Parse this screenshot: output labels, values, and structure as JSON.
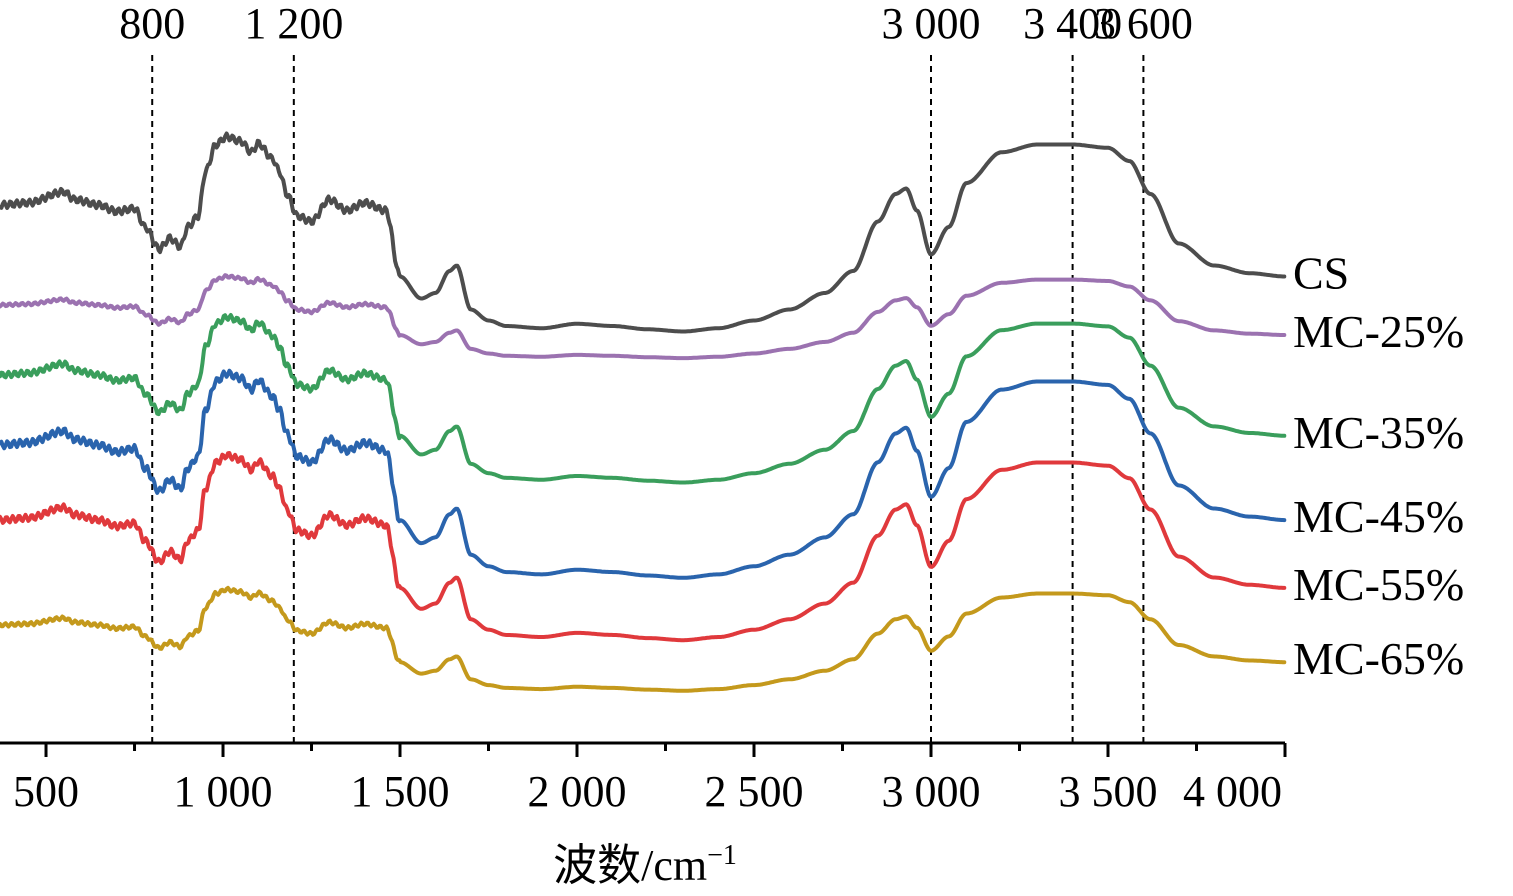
{
  "chart_data": {
    "type": "line",
    "title": "",
    "xlabel": "波数/cm",
    "xlabel_superscript": "−1",
    "ylabel": "",
    "xlim": [
      370,
      4000
    ],
    "x_ticks": [
      {
        "value": 500,
        "label": "500"
      },
      {
        "value": 1000,
        "label": "1 000"
      },
      {
        "value": 1500,
        "label": "1 500"
      },
      {
        "value": 2000,
        "label": "2 000"
      },
      {
        "value": 2500,
        "label": "2 500"
      },
      {
        "value": 3000,
        "label": "3 000"
      },
      {
        "value": 3500,
        "label": "3 500"
      },
      {
        "value": 4000,
        "label": "4 000"
      }
    ],
    "reference_lines": [
      {
        "x": 800,
        "label": "800"
      },
      {
        "x": 1200,
        "label": "1 200"
      },
      {
        "x": 3000,
        "label": "3 000"
      },
      {
        "x": 3400,
        "label": "3 400"
      },
      {
        "x": 3600,
        "label": "3 600"
      }
    ],
    "y_shown": false,
    "grid": false,
    "legend": "labels at right end of each curve",
    "series": [
      {
        "name": "CS",
        "color": "#4d4d4d",
        "offset": 0.0,
        "amp": 1.0
      },
      {
        "name": "MC-25%",
        "color": "#9b72b0",
        "offset": 1.0,
        "amp": 0.42
      },
      {
        "name": "MC-35%",
        "color": "#3a9e5c",
        "offset": 1.7,
        "amp": 0.85
      },
      {
        "name": "MC-45%",
        "color": "#2a64ad",
        "offset": 2.4,
        "amp": 1.05
      },
      {
        "name": "MC-55%",
        "color": "#e0393c",
        "offset": 3.15,
        "amp": 0.95
      },
      {
        "name": "MC-65%",
        "color": "#c4991c",
        "offset": 4.2,
        "amp": 0.52
      }
    ],
    "profile_x": [
      370,
      450,
      550,
      580,
      650,
      700,
      750,
      780,
      820,
      850,
      880,
      900,
      930,
      950,
      980,
      1010,
      1050,
      1080,
      1100,
      1140,
      1160,
      1180,
      1210,
      1250,
      1300,
      1350,
      1400,
      1460,
      1500,
      1560,
      1600,
      1640,
      1660,
      1700,
      1750,
      1800,
      1900,
      2000,
      2100,
      2200,
      2300,
      2400,
      2500,
      2600,
      2700,
      2780,
      2850,
      2900,
      2930,
      2960,
      3000,
      3050,
      3100,
      3200,
      3300,
      3400,
      3500,
      3560,
      3620,
      3700,
      3800,
      3900,
      4000
    ],
    "profile_y": [
      0.0,
      0.02,
      0.12,
      0.05,
      0.0,
      -0.06,
      -0.03,
      -0.2,
      -0.4,
      -0.3,
      -0.38,
      -0.2,
      -0.1,
      0.3,
      0.55,
      0.62,
      0.58,
      0.48,
      0.56,
      0.42,
      0.3,
      0.1,
      -0.1,
      -0.15,
      0.05,
      -0.05,
      0.02,
      -0.05,
      -0.65,
      -0.85,
      -0.8,
      -0.6,
      -0.55,
      -0.95,
      -1.05,
      -1.1,
      -1.12,
      -1.08,
      -1.1,
      -1.13,
      -1.15,
      -1.12,
      -1.05,
      -0.95,
      -0.8,
      -0.6,
      -0.15,
      0.1,
      0.15,
      -0.05,
      -0.45,
      -0.2,
      0.2,
      0.48,
      0.55,
      0.55,
      0.52,
      0.4,
      0.1,
      -0.35,
      -0.55,
      -0.62,
      -0.65
    ]
  },
  "annotations": {
    "peak_labels": [
      "800",
      "1 200",
      "3 000",
      "3 400",
      "3 600"
    ]
  }
}
